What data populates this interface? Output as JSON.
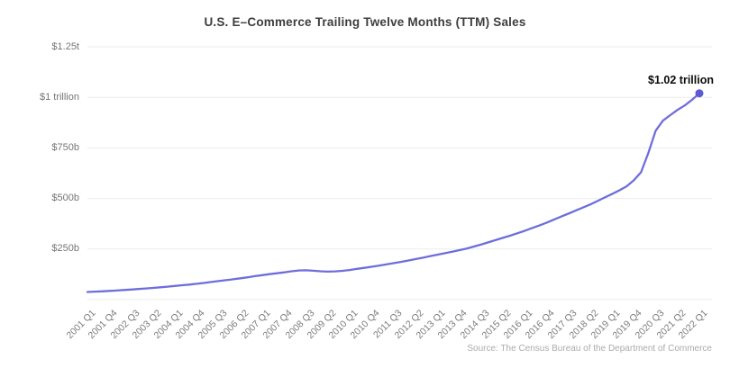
{
  "header": {
    "title": "U.S. E–Commerce Trailing Twelve Months (TTM) Sales"
  },
  "annotation": {
    "label": "$1.02 trillion"
  },
  "source": {
    "label": "Source: The Census Bureau of the Department of Commerce"
  },
  "colors": {
    "line": "#6e6edb",
    "dot": "#5b5ad3",
    "grid": "#ebebeb",
    "title_text": "#3d3d3d",
    "axis_text": "#757575",
    "source_text": "#ababab",
    "annotation_text": "#0b0b0b",
    "background": "#ffffff"
  },
  "chart_data": {
    "type": "line",
    "title": "U.S. E–Commerce Trailing Twelve Months (TTM) Sales",
    "xlabel": "",
    "ylabel": "",
    "unit": "billions of USD",
    "grid": "horizontal",
    "legend": "none",
    "x_start": "2001 Q1",
    "x_end": "2022 Q1",
    "x_step": "1 quarter",
    "ylim": [
      0,
      1250
    ],
    "y_tick_labels": [
      "$1.25t",
      "$1 trillion",
      "$750b",
      "$500b",
      "$250b"
    ],
    "y_tick_values": [
      1250,
      1000,
      750,
      500,
      250
    ],
    "x_tick_labels": [
      "2001 Q1",
      "2001 Q4",
      "2002 Q3",
      "2003 Q2",
      "2004 Q1",
      "2004 Q4",
      "2005 Q3",
      "2006 Q2",
      "2007 Q1",
      "2007 Q4",
      "2008 Q3",
      "2009 Q2",
      "2010 Q1",
      "2010 Q4",
      "2011 Q3",
      "2012 Q2",
      "2013 Q1",
      "2013 Q4",
      "2014 Q3",
      "2015 Q2",
      "2016 Q1",
      "2016 Q4",
      "2017 Q3",
      "2018 Q2",
      "2019 Q1",
      "2019 Q4",
      "2020 Q3",
      "2021 Q2",
      "2022 Q1"
    ],
    "x_ticks_every_n_points": 3,
    "series": [
      {
        "name": "TTM e-commerce sales ($B)",
        "values": [
          38,
          39.5,
          41,
          43,
          45,
          47.5,
          50,
          52.5,
          55,
          58,
          61,
          64,
          67.5,
          71,
          74.5,
          78.5,
          82.5,
          87,
          91.5,
          96,
          100.5,
          105.5,
          110.5,
          116,
          121,
          126,
          130.5,
          135,
          140,
          144,
          145,
          143,
          140,
          138.5,
          139.5,
          142.5,
          146.5,
          152,
          157,
          162.5,
          168,
          174,
          180,
          186.5,
          193,
          200,
          207,
          214.5,
          222,
          229,
          236,
          244,
          252,
          262,
          272,
          283,
          294,
          305,
          316,
          328,
          340,
          353,
          366,
          380,
          395,
          410,
          425,
          440,
          455,
          470,
          487,
          505,
          522,
          540,
          560,
          590,
          630,
          725,
          835,
          885,
          912,
          938,
          960,
          988,
          1020
        ]
      }
    ],
    "endpoint_label": "$1.02 trillion",
    "endpoint_value": 1020
  }
}
